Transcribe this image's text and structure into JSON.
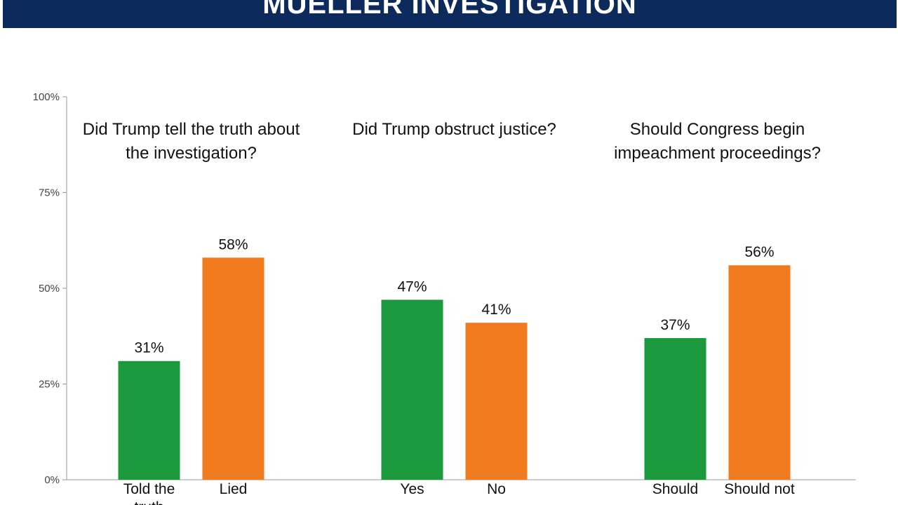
{
  "chart_data": {
    "type": "grouped-bar",
    "title": "MUELLER INVESTIGATION",
    "colors": [
      "#1a9a3d",
      "#f07a1e"
    ],
    "ylim": [
      0,
      100
    ],
    "yticks": [
      {
        "value": 0,
        "label": "0%"
      },
      {
        "value": 25,
        "label": "25%"
      },
      {
        "value": 50,
        "label": "50%"
      },
      {
        "value": 75,
        "label": "75%"
      },
      {
        "value": 100,
        "label": "100%"
      }
    ],
    "groups": [
      {
        "question": "Did Trump tell the truth about the investigation?",
        "categories": [
          "Told the truth",
          "Lied"
        ],
        "values": [
          31,
          58
        ],
        "value_labels": [
          "31%",
          "58%"
        ]
      },
      {
        "question": "Did Trump obstruct justice?",
        "categories": [
          "Yes",
          "No"
        ],
        "values": [
          47,
          41
        ],
        "value_labels": [
          "47%",
          "41%"
        ]
      },
      {
        "question": "Should Congress begin impeachment proceedings?",
        "categories": [
          "Should",
          "Should not"
        ],
        "values": [
          37,
          56
        ],
        "value_labels": [
          "37%",
          "56%"
        ]
      }
    ]
  }
}
